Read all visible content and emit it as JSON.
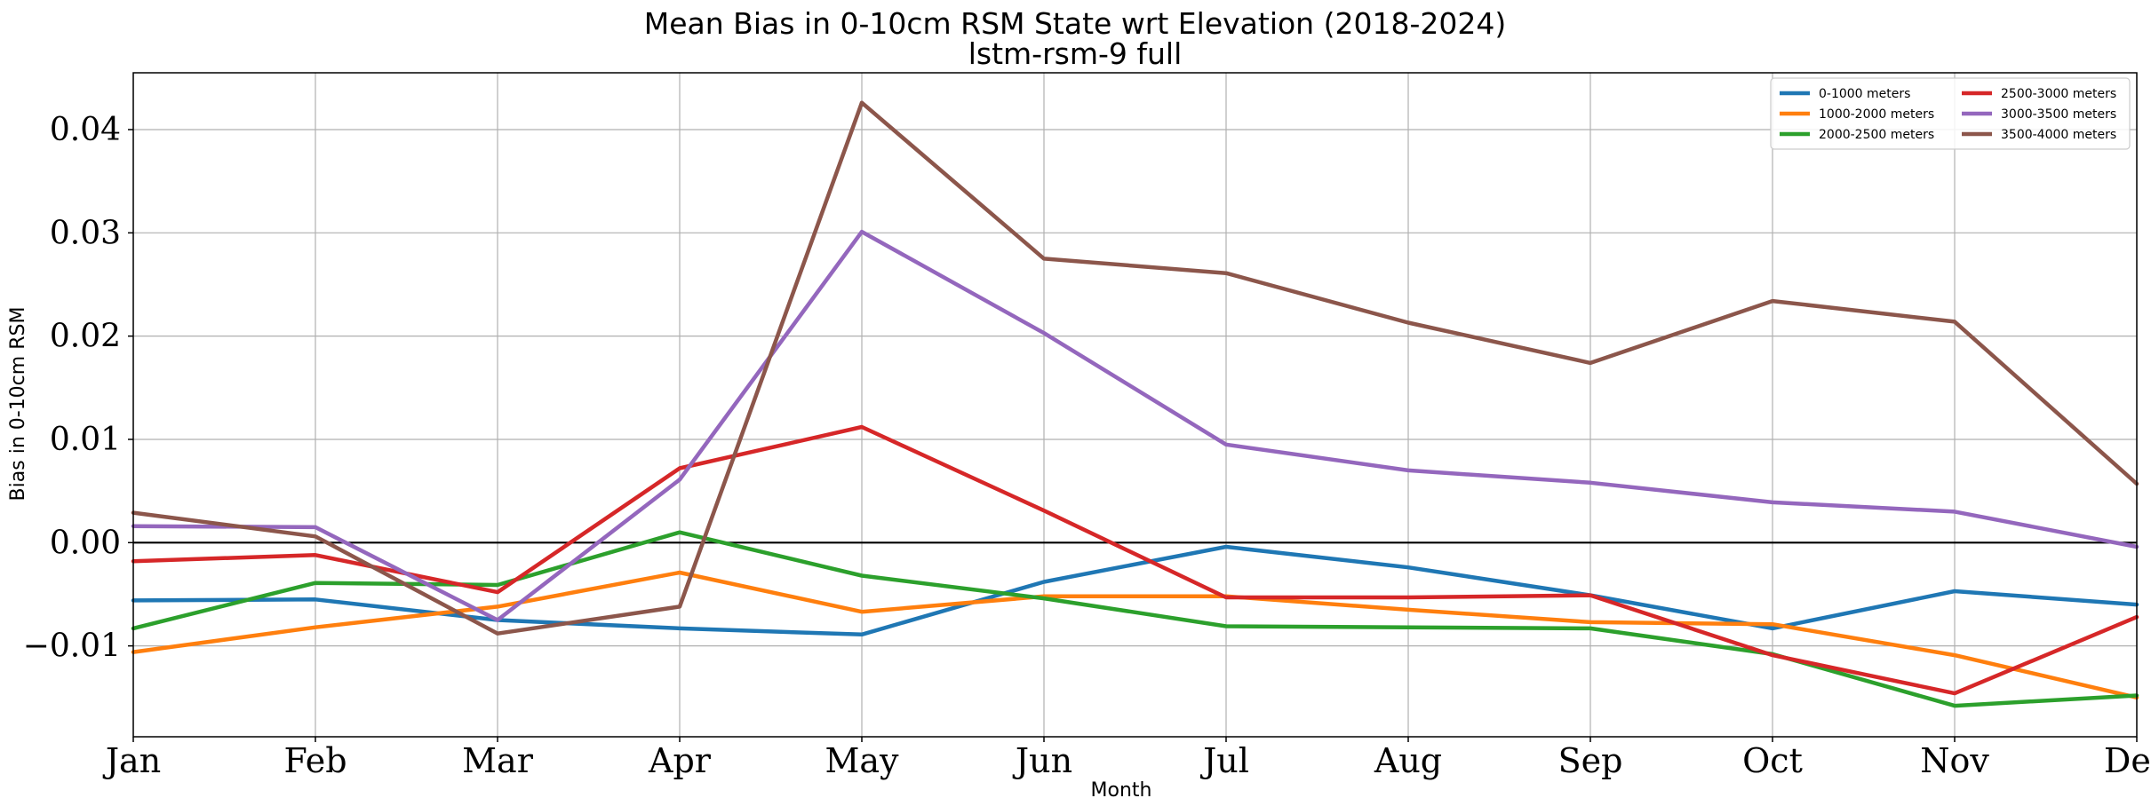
{
  "chart_data": {
    "type": "line",
    "title": "Mean Bias in 0-10cm RSM State wrt Elevation (2018-2024)",
    "subtitle": "lstm-rsm-9 full",
    "xlabel": "Month",
    "ylabel": "Bias in 0-10cm RSM",
    "categories": [
      "Jan",
      "Feb",
      "Mar",
      "Apr",
      "May",
      "Jun",
      "Jul",
      "Aug",
      "Sep",
      "Oct",
      "Nov",
      "Dec"
    ],
    "ylim": [
      -0.0188,
      0.0455
    ],
    "yticks": [
      -0.01,
      0.0,
      0.01,
      0.02,
      0.03,
      0.04
    ],
    "ytick_labels": [
      "−0.01",
      "0.00",
      "0.01",
      "0.02",
      "0.03",
      "0.04"
    ],
    "grid": true,
    "zero_line": true,
    "legend_position": "top-right",
    "legend_columns": 2,
    "series": [
      {
        "name": "0-1000 meters",
        "color": "#1f77b4",
        "values": [
          -0.0056,
          -0.0055,
          -0.0075,
          -0.0083,
          -0.0089,
          -0.0038,
          -0.0004,
          -0.0024,
          -0.0051,
          -0.0083,
          -0.0047,
          -0.006
        ]
      },
      {
        "name": "1000-2000 meters",
        "color": "#ff7f0e",
        "values": [
          -0.0106,
          -0.0082,
          -0.0062,
          -0.0029,
          -0.0067,
          -0.0052,
          -0.0052,
          -0.0065,
          -0.0077,
          -0.0079,
          -0.0109,
          -0.015
        ]
      },
      {
        "name": "2000-2500 meters",
        "color": "#2ca02c",
        "values": [
          -0.0083,
          -0.0039,
          -0.0041,
          0.001,
          -0.0032,
          -0.0054,
          -0.0081,
          -0.0082,
          -0.0083,
          -0.0108,
          -0.0158,
          -0.0148
        ]
      },
      {
        "name": "2500-3000 meters",
        "color": "#d62728",
        "values": [
          -0.0018,
          -0.0012,
          -0.0048,
          0.0072,
          0.0112,
          0.0031,
          -0.0053,
          -0.0053,
          -0.0051,
          -0.0109,
          -0.0146,
          -0.0072
        ]
      },
      {
        "name": "3000-3500 meters",
        "color": "#9467bd",
        "values": [
          0.0016,
          0.0015,
          -0.0075,
          0.0061,
          0.0301,
          0.0203,
          0.0095,
          0.007,
          0.0058,
          0.0039,
          0.003,
          -0.0004
        ]
      },
      {
        "name": "3500-4000 meters",
        "color": "#8c564b",
        "values": [
          0.0029,
          0.0006,
          -0.0088,
          -0.0062,
          0.0426,
          0.0275,
          0.0261,
          0.0213,
          0.0174,
          0.0234,
          0.0214,
          0.0057
        ]
      }
    ]
  }
}
